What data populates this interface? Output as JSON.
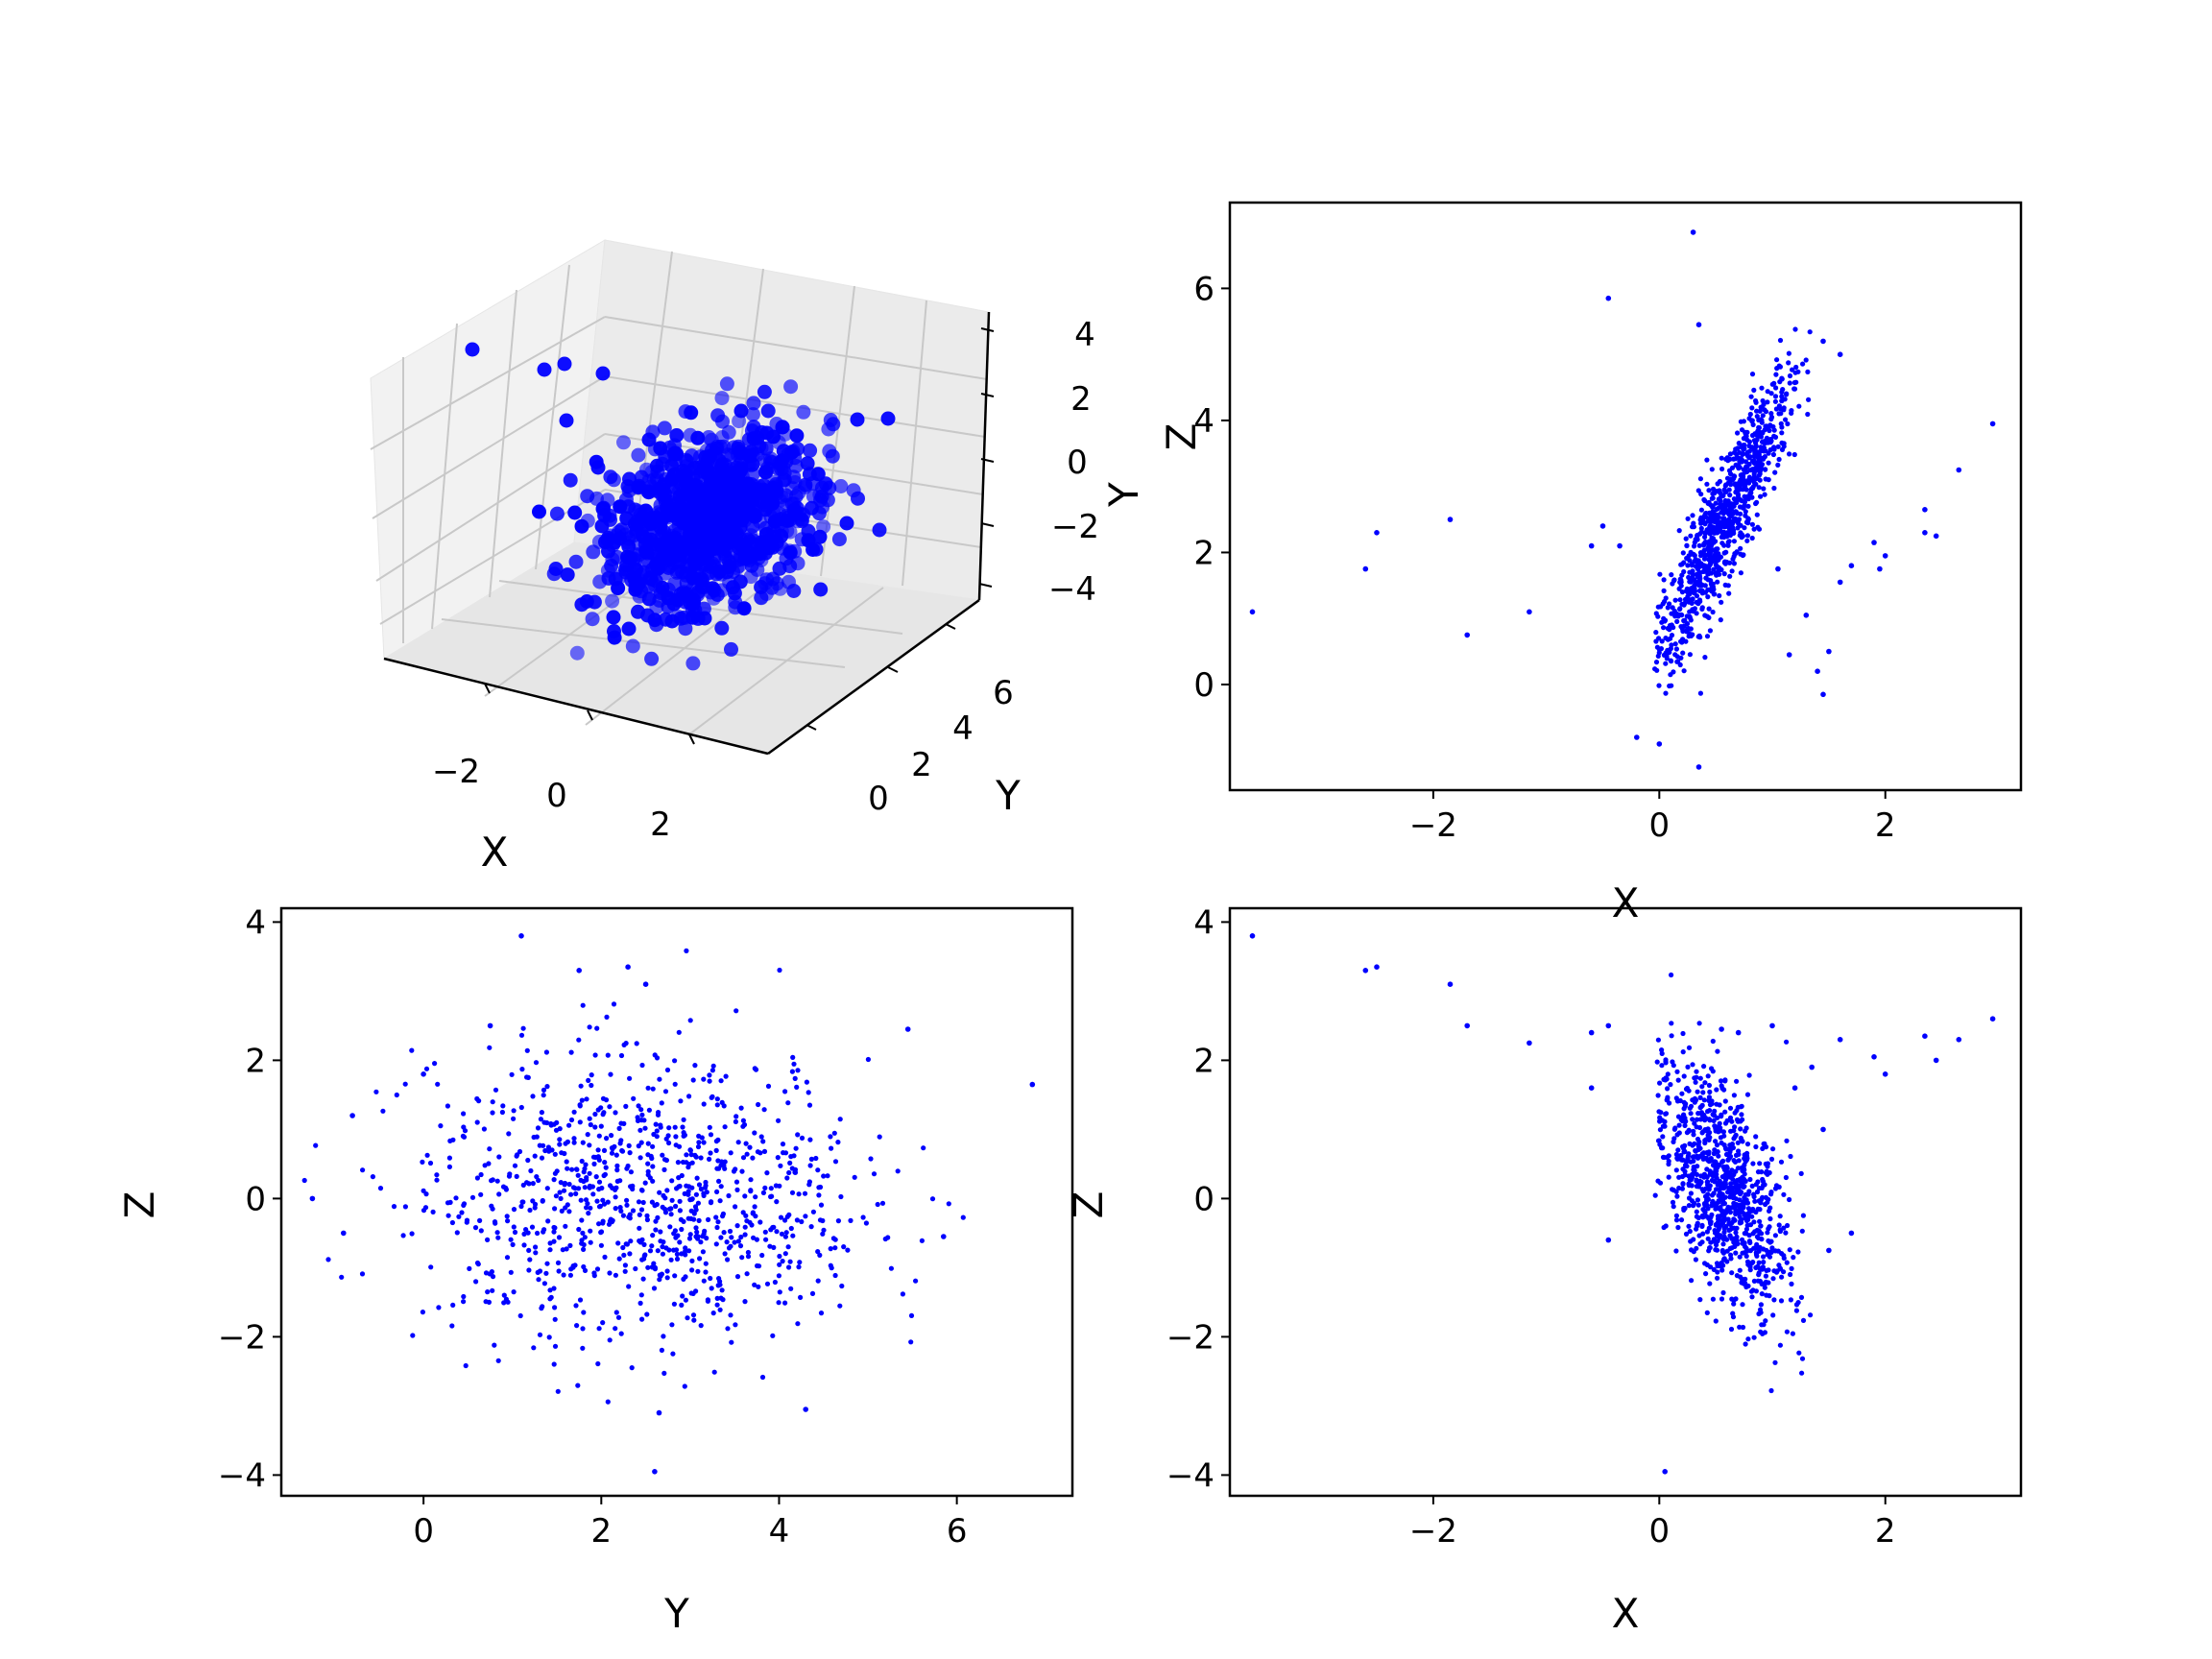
{
  "chart_data": [
    {
      "type": "scatter3d",
      "title": "",
      "xlabel": "X",
      "ylabel": "Y",
      "zlabel": "Y",
      "xticks": [
        "−2",
        "0",
        "2"
      ],
      "yticks": [
        "0",
        "2",
        "4",
        "6"
      ],
      "zticks": [
        "4",
        "2",
        "0",
        "−2",
        "−4"
      ],
      "xlim": [
        -3.6,
        3.0
      ],
      "ylim": [
        -1.3,
        6.9
      ],
      "zlim": [
        -4.0,
        3.8
      ],
      "marker_color": "#0000ff",
      "point_cloud": {
        "n": 1000,
        "center": [
          0.4,
          2.5,
          0.0
        ],
        "note_dist": "dense blob, x roughly 0 to 1.2, y 0 to 5.5, z -3 to 3, with a few outliers"
      }
    },
    {
      "type": "scatter",
      "xlabel": "X",
      "ylabel": "Z",
      "xticks": [
        "−2",
        "0",
        "2"
      ],
      "yticks": [
        "6",
        "4",
        "2",
        "0"
      ],
      "xlim": [
        -3.8,
        3.2
      ],
      "ylim": [
        -1.6,
        7.3
      ],
      "marker_color": "#0000ff",
      "outliers": [
        [
          -3.6,
          1.1
        ],
        [
          -2.6,
          1.75
        ],
        [
          -2.5,
          2.3
        ],
        [
          -1.85,
          2.5
        ],
        [
          -1.7,
          0.75
        ],
        [
          -1.15,
          1.1
        ],
        [
          -0.45,
          5.85
        ],
        [
          -0.6,
          2.1
        ],
        [
          -0.35,
          2.1
        ],
        [
          -0.5,
          2.4
        ],
        [
          0.3,
          6.85
        ],
        [
          0.35,
          5.45
        ],
        [
          -0.2,
          -0.8
        ],
        [
          0.0,
          -0.9
        ],
        [
          0.35,
          -1.25
        ],
        [
          1.6,
          5.0
        ],
        [
          1.45,
          5.2
        ],
        [
          1.7,
          1.8
        ],
        [
          2.35,
          2.65
        ],
        [
          2.35,
          2.3
        ],
        [
          2.45,
          2.25
        ],
        [
          2.65,
          3.25
        ],
        [
          2.95,
          3.95
        ],
        [
          1.9,
          2.15
        ],
        [
          2.0,
          1.95
        ],
        [
          1.3,
          1.05
        ],
        [
          1.5,
          0.5
        ],
        [
          1.15,
          0.45
        ],
        [
          1.4,
          0.2
        ],
        [
          1.45,
          -0.15
        ],
        [
          1.05,
          1.75
        ],
        [
          1.6,
          1.55
        ],
        [
          1.95,
          1.75
        ]
      ],
      "cluster": {
        "x_range": [
          0.0,
          1.3
        ],
        "y_range": [
          -0.5,
          5.5
        ],
        "note": "elongated cloud, z increases with x"
      }
    },
    {
      "type": "scatter",
      "xlabel": "Y",
      "ylabel": "Z",
      "xticks": [
        "0",
        "2",
        "4",
        "6"
      ],
      "yticks": [
        "4",
        "2",
        "0",
        "−2",
        "−4"
      ],
      "xlim": [
        -1.6,
        7.3
      ],
      "ylim": [
        -4.3,
        4.2
      ],
      "marker_color": "#0000ff",
      "outliers": [
        [
          1.1,
          3.8
        ],
        [
          1.75,
          3.3
        ],
        [
          2.3,
          3.35
        ],
        [
          2.5,
          3.1
        ],
        [
          0.75,
          2.5
        ],
        [
          5.45,
          2.45
        ],
        [
          6.85,
          1.65
        ],
        [
          2.6,
          -3.95
        ],
        [
          2.65,
          -3.1
        ],
        [
          4.3,
          -3.05
        ],
        [
          -1.25,
          0.0
        ],
        [
          -0.9,
          -0.5
        ],
        [
          5.85,
          -0.55
        ],
        [
          -0.8,
          1.2
        ],
        [
          0.0,
          1.8
        ]
      ],
      "cluster": {
        "x_range": [
          -0.5,
          5.5
        ],
        "y_range": [
          -2.7,
          2.6
        ],
        "note": "roughly elliptical cloud centred near (2.5, 0)"
      }
    },
    {
      "type": "scatter",
      "xlabel": "X",
      "ylabel": "Z",
      "xticks": [
        "−2",
        "0",
        "2"
      ],
      "yticks": [
        "4",
        "2",
        "0",
        "−2",
        "−4"
      ],
      "xlim": [
        -3.8,
        3.2
      ],
      "ylim": [
        -4.3,
        4.2
      ],
      "marker_color": "#0000ff",
      "outliers": [
        [
          -3.6,
          3.8
        ],
        [
          -2.6,
          3.3
        ],
        [
          -2.5,
          3.35
        ],
        [
          -1.85,
          3.1
        ],
        [
          -1.7,
          2.5
        ],
        [
          -1.15,
          2.25
        ],
        [
          -0.45,
          2.5
        ],
        [
          -0.6,
          2.4
        ],
        [
          -0.6,
          1.6
        ],
        [
          -0.45,
          -0.6
        ],
        [
          0.05,
          -3.95
        ],
        [
          0.55,
          2.45
        ],
        [
          0.7,
          2.4
        ],
        [
          1.0,
          2.5
        ],
        [
          1.6,
          2.3
        ],
        [
          1.9,
          2.05
        ],
        [
          2.35,
          2.35
        ],
        [
          2.45,
          2.0
        ],
        [
          2.65,
          2.3
        ],
        [
          2.95,
          2.6
        ],
        [
          1.7,
          -0.5
        ],
        [
          1.45,
          1.0
        ],
        [
          1.5,
          -0.75
        ],
        [
          1.2,
          1.6
        ],
        [
          1.35,
          1.9
        ],
        [
          2.0,
          1.8
        ]
      ],
      "cluster": {
        "x_range": [
          0.0,
          1.3
        ],
        "y_range": [
          -3.1,
          2.2
        ],
        "note": "wedge-shaped cloud, z decreases with x"
      }
    }
  ]
}
